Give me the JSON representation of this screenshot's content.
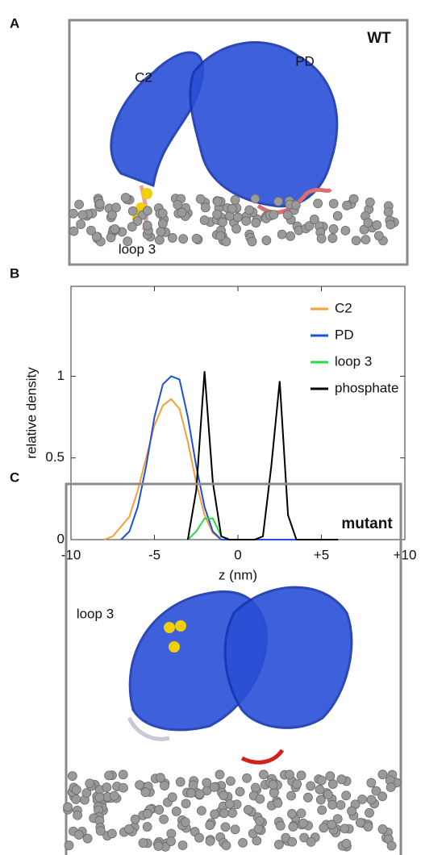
{
  "panel_a": {
    "letter": "A",
    "condition": "WT",
    "labels": [
      "C2",
      "PD",
      "loop 3"
    ]
  },
  "panel_b": {
    "letter": "B"
  },
  "chart_data": {
    "type": "line",
    "x_label": "z (nm)",
    "y_label": "relative density",
    "x": [
      -8,
      -7.5,
      -7,
      -6.5,
      -6,
      -5.5,
      -5,
      -4.5,
      -4,
      -3.5,
      -3,
      -2.5,
      -2,
      -1.5,
      -1,
      -0.5,
      0,
      0.5,
      1,
      1.5,
      2,
      2.5,
      3,
      3.5,
      4,
      4.5,
      5,
      5.5,
      6
    ],
    "series": [
      {
        "name": "C2",
        "color": "#f5a033",
        "values": [
          0,
          0.02,
          0.08,
          0.14,
          0.3,
          0.5,
          0.7,
          0.82,
          0.86,
          0.8,
          0.6,
          0.35,
          0.15,
          0.04,
          0,
          null,
          null,
          null,
          null,
          null,
          null,
          null,
          null,
          null,
          null,
          null,
          null,
          null,
          null
        ]
      },
      {
        "name": "PD",
        "color": "#1f4fe0",
        "values": [
          null,
          null,
          0,
          0.05,
          0.2,
          0.45,
          0.75,
          0.95,
          1.0,
          0.98,
          0.75,
          0.45,
          0.2,
          0.05,
          0,
          0,
          0,
          0,
          0,
          0,
          0,
          0,
          0,
          0,
          null,
          null,
          null,
          null,
          null
        ]
      },
      {
        "name": "loop 3",
        "color": "#22dd44",
        "values": [
          null,
          null,
          null,
          null,
          null,
          null,
          null,
          null,
          null,
          null,
          0,
          0.05,
          0.13,
          0.13,
          0.02,
          0,
          null,
          null,
          null,
          null,
          null,
          null,
          null,
          null,
          null,
          null,
          null,
          null,
          null
        ]
      },
      {
        "name": "phosphate",
        "color": "#000000",
        "values": [
          null,
          null,
          null,
          null,
          null,
          null,
          null,
          null,
          null,
          null,
          0,
          0.3,
          1.03,
          0.35,
          0.02,
          0,
          0,
          0,
          0,
          0.02,
          0.45,
          0.97,
          0.15,
          0,
          0,
          0,
          0,
          0,
          0
        ]
      }
    ],
    "xlim": [
      -10,
      10
    ],
    "ylim": [
      0,
      1.55
    ],
    "xticks": [
      -10,
      -5,
      0,
      {
        "value": 5,
        "label": "+5"
      },
      {
        "value": 10,
        "label": "+10"
      }
    ],
    "yticks": [
      0,
      0.5,
      1
    ],
    "legend": "upper right",
    "grid": false
  },
  "panel_c": {
    "letter": "C",
    "condition": "mutant",
    "labels": [
      "loop 3"
    ]
  }
}
